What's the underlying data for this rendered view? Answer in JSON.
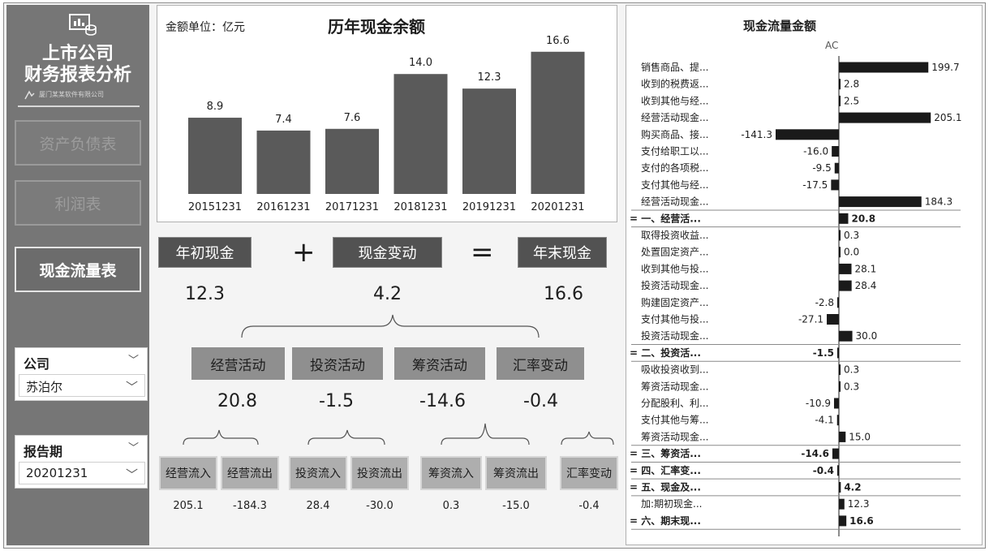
{
  "sidebar": {
    "logo_icon": "report-icon",
    "title_line1": "上市公司",
    "title_line2": "财务报表分析",
    "company_caption": "厦门某某软件有限公司",
    "nav": [
      {
        "label": "资产负债表",
        "active": false
      },
      {
        "label": "利润表",
        "active": false
      },
      {
        "label": "现金流量表",
        "active": true
      }
    ],
    "company_slicer": {
      "label": "公司",
      "value": "苏泊尔"
    },
    "period_slicer": {
      "label": "报告期",
      "value": "20201231"
    }
  },
  "balance_chart": {
    "unit_label": "金额单位：亿元",
    "chart_data": {
      "type": "bar",
      "title": "历年现金余额",
      "categories": [
        "20151231",
        "20161231",
        "20171231",
        "20181231",
        "20191231",
        "20201231"
      ],
      "values": [
        8.9,
        7.4,
        7.6,
        14.0,
        12.3,
        16.6
      ],
      "value_labels": [
        "8.9",
        "7.4",
        "7.6",
        "14.0",
        "12.3",
        "16.6"
      ],
      "ylim": [
        0,
        18
      ],
      "bar_color": "#5a5a5a"
    }
  },
  "summary": {
    "opening": {
      "label": "年初现金",
      "value": "12.3"
    },
    "change": {
      "label": "现金变动",
      "value": "4.2"
    },
    "closing": {
      "label": "年末现金",
      "value": "16.6"
    },
    "plus": "+",
    "equals": "="
  },
  "activities": [
    {
      "label": "经营活动",
      "value": "20.8"
    },
    {
      "label": "投资活动",
      "value": "-1.5"
    },
    {
      "label": "筹资活动",
      "value": "-14.6"
    },
    {
      "label": "汇率变动",
      "value": "-0.4"
    }
  ],
  "flows": [
    {
      "label": "经营流入",
      "value": "205.1"
    },
    {
      "label": "经营流出",
      "value": "-184.3"
    },
    {
      "label": "投资流入",
      "value": "28.4"
    },
    {
      "label": "投资流出",
      "value": "-30.0"
    },
    {
      "label": "筹资流入",
      "value": "0.3"
    },
    {
      "label": "筹资流出",
      "value": "-15.0"
    },
    {
      "label": "汇率变动",
      "value": "-0.4"
    }
  ],
  "waterfall": {
    "title": "现金流量金额",
    "column": "AC",
    "chart_data": {
      "type": "bar",
      "rows": [
        {
          "label": "销售商品、提...",
          "value": 199.7,
          "display": "199.7",
          "bold": false
        },
        {
          "label": "收到的税费返...",
          "value": 2.8,
          "display": "2.8",
          "bold": false
        },
        {
          "label": "收到其他与经...",
          "value": 2.5,
          "display": "2.5",
          "bold": false
        },
        {
          "label": "经营活动现金...",
          "value": 205.1,
          "display": "205.1",
          "bold": false
        },
        {
          "label": "购买商品、接...",
          "value": -141.3,
          "display": "-141.3",
          "bold": false
        },
        {
          "label": "支付给职工以...",
          "value": -16.0,
          "display": "-16.0",
          "bold": false
        },
        {
          "label": "支付的各项税...",
          "value": -9.5,
          "display": "-9.5",
          "bold": false
        },
        {
          "label": "支付其他与经...",
          "value": -17.5,
          "display": "-17.5",
          "bold": false
        },
        {
          "label": "经营活动现金...",
          "value": 184.3,
          "display": "184.3",
          "bold": false
        },
        {
          "label": "= 一、经营活...",
          "value": 20.8,
          "display": "20.8",
          "bold": true
        },
        {
          "label": "取得投资收益...",
          "value": 0.3,
          "display": "0.3",
          "bold": false
        },
        {
          "label": "处置固定资产...",
          "value": 0.0,
          "display": "0.0",
          "bold": false
        },
        {
          "label": "收到其他与投...",
          "value": 28.1,
          "display": "28.1",
          "bold": false
        },
        {
          "label": "投资活动现金...",
          "value": 28.4,
          "display": "28.4",
          "bold": false
        },
        {
          "label": "购建固定资产...",
          "value": -2.8,
          "display": "-2.8",
          "bold": false
        },
        {
          "label": "支付其他与投...",
          "value": -27.1,
          "display": "-27.1",
          "bold": false
        },
        {
          "label": "投资活动现金...",
          "value": 30.0,
          "display": "30.0",
          "bold": false
        },
        {
          "label": "= 二、投资活...",
          "value": -1.5,
          "display": "-1.5",
          "bold": true
        },
        {
          "label": "吸收投资收到...",
          "value": 0.3,
          "display": "0.3",
          "bold": false
        },
        {
          "label": "筹资活动现金...",
          "value": 0.3,
          "display": "0.3",
          "bold": false
        },
        {
          "label": "分配股利、利...",
          "value": -10.9,
          "display": "-10.9",
          "bold": false
        },
        {
          "label": "支付其他与筹...",
          "value": -4.1,
          "display": "-4.1",
          "bold": false
        },
        {
          "label": "筹资活动现金...",
          "value": 15.0,
          "display": "15.0",
          "bold": false
        },
        {
          "label": "= 三、筹资活...",
          "value": -14.6,
          "display": "-14.6",
          "bold": true
        },
        {
          "label": "= 四、汇率变...",
          "value": -0.4,
          "display": "-0.4",
          "bold": true
        },
        {
          "label": "= 五、现金及...",
          "value": 4.2,
          "display": "4.2",
          "bold": true
        },
        {
          "label": "加:期初现金...",
          "value": 12.3,
          "display": "12.3",
          "bold": false
        },
        {
          "label": "= 六、期末现...",
          "value": 16.6,
          "display": "16.6",
          "bold": true
        }
      ],
      "bar_color": "#1a1a1a"
    }
  }
}
